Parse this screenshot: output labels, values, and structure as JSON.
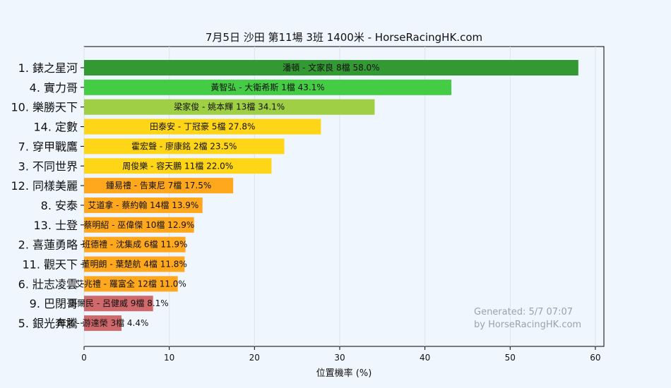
{
  "chart_data": {
    "type": "bar",
    "orientation": "horizontal",
    "title": "7月5日  沙田  第11場  3班  1400米 - HorseRacingHK.com",
    "xlabel": "位置機率 (%)",
    "ylabel": "",
    "xlim": [
      0,
      61
    ],
    "xticks": [
      0,
      10,
      20,
      30,
      40,
      50,
      60
    ],
    "grid": true,
    "categories": [
      "1. 錶之星河",
      "4. 實力哥",
      "10. 樂勝天下",
      "14. 定數",
      "7. 穿甲戰鷹",
      "3. 不同世界",
      "12. 同樣美麗",
      "8. 安泰",
      "13. 士登",
      "2. 喜蓮勇略",
      "11. 觀天下",
      "6. 壯志凌雲",
      "9. 巴閉哥",
      "5. 銀光奔騰"
    ],
    "values": [
      58.0,
      43.1,
      34.1,
      27.8,
      23.5,
      22.0,
      17.5,
      13.9,
      12.9,
      11.9,
      11.8,
      11.0,
      8.1,
      4.4
    ],
    "bar_labels": [
      "潘頓 - 文家良 8檔  58.0%",
      "黃智弘 - 大衛希斯 1檔  43.1%",
      "梁家俊 - 姚本輝 13檔  34.1%",
      "田泰安 - 丁冠豪 5檔  27.8%",
      "霍宏聲 - 廖康銘 2檔  23.5%",
      "周俊樂 - 容天鵬 11檔  22.0%",
      "鍾易禮 - 告東尼 7檔  17.5%",
      "艾道拿 - 蔡約翰 14檔  13.9%",
      "蔡明紹 - 巫偉傑 10檔  12.9%",
      "班德禮 - 沈集成 6檔  11.9%",
      "董明朗 - 葉楚航 4檔  11.8%",
      "艾兆禮 - 羅富全 12檔  11.0%",
      "奧爾民 - 呂健威 9檔  8.1%",
      "布文 - 游達榮 3檔  4.4%"
    ],
    "colors": [
      "#339933",
      "#44cc44",
      "#9fcf44",
      "#ffd518",
      "#ffd518",
      "#ffd518",
      "#ffa81e",
      "#ffa81e",
      "#ffa81e",
      "#ffa81e",
      "#ffa81e",
      "#ffa81e",
      "#d0696c",
      "#d0696c"
    ],
    "watermark": [
      "Generated: 5/7 07:07",
      "by HorseRacingHK.com"
    ]
  }
}
